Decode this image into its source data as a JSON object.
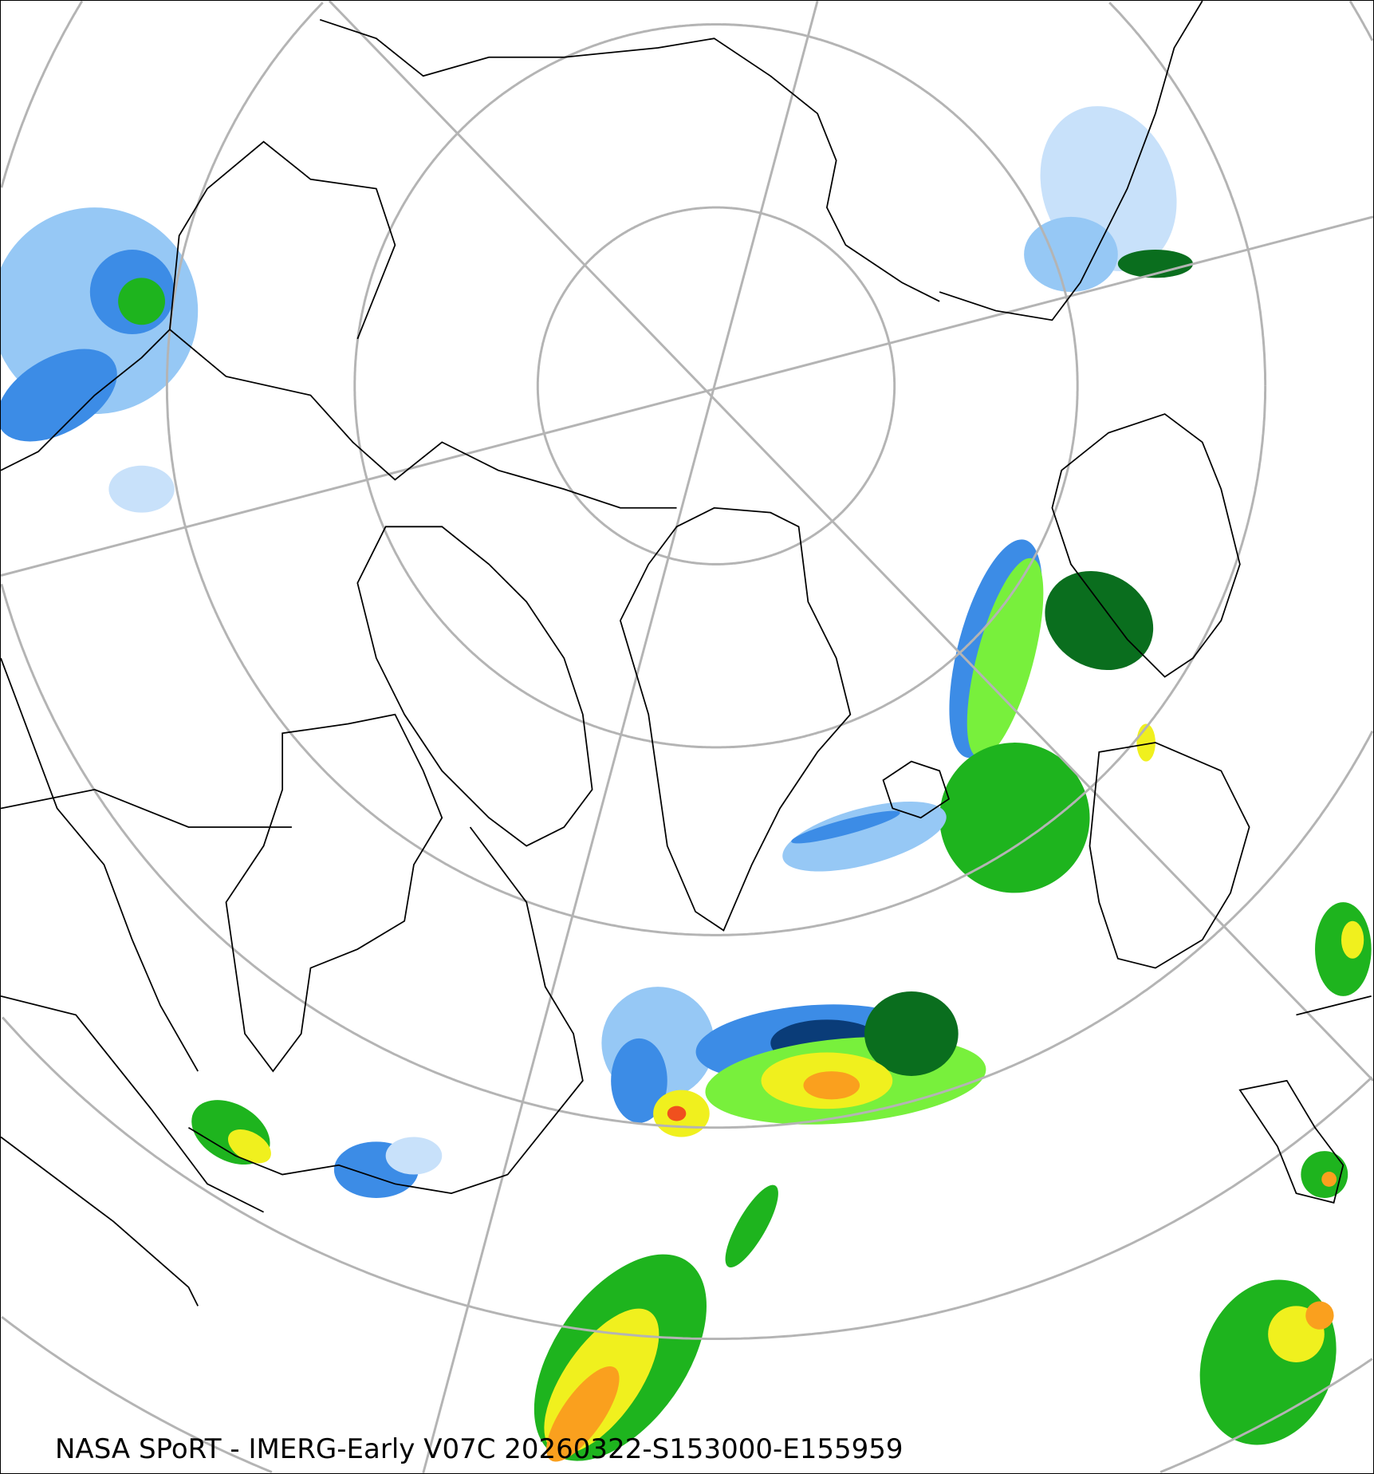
{
  "caption": "NASA SPoRT - IMERG-Early V07C 20260322-S153000-E155959",
  "map": {
    "projection": "north-polar-stereographic",
    "graticule_color": "#b4b4b4",
    "coastline_color": "#000000",
    "precip_colors": {
      "very_light": "#c8e1fa",
      "light": "#96c8f5",
      "moderate_blue": "#3c8ce6",
      "dark_blue": "#0a3c78",
      "dark_green": "#0a6e1e",
      "green": "#1eb41e",
      "light_green": "#78f03c",
      "yellow": "#f0f01e",
      "orange": "#faa01e",
      "red": "#f0501e",
      "pink": "#f064c8"
    }
  }
}
